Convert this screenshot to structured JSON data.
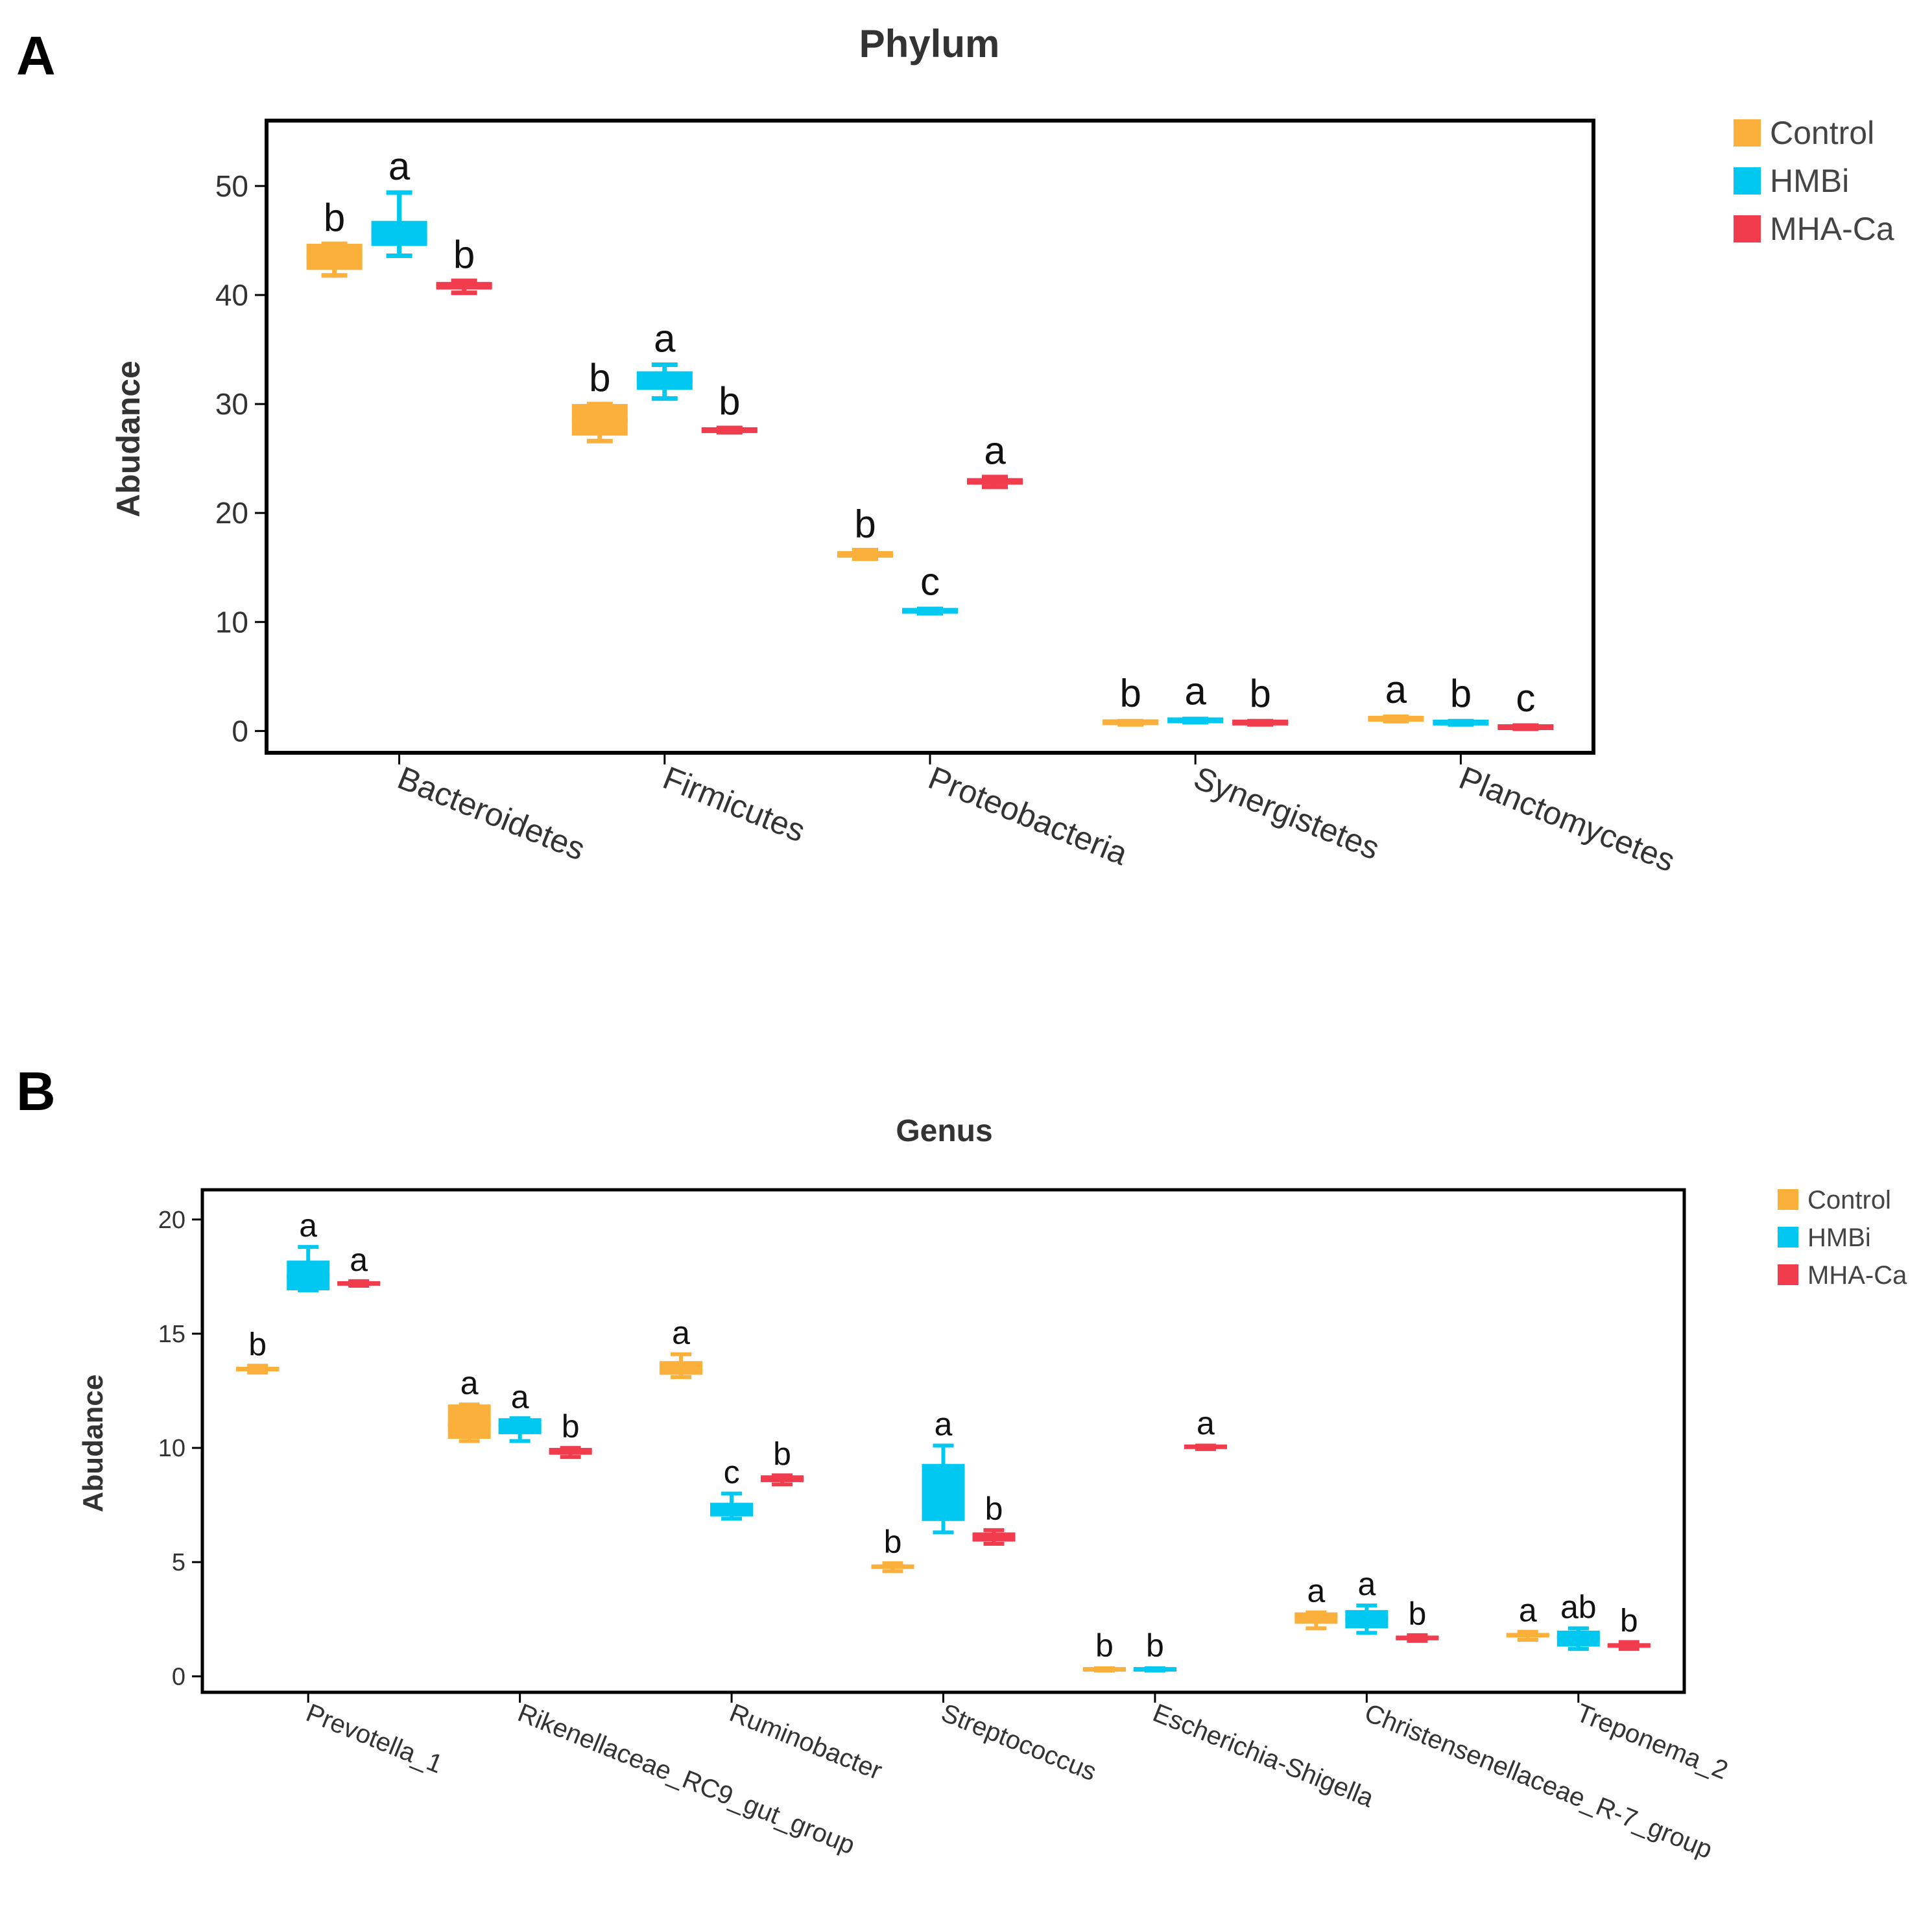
{
  "panels": [
    {
      "letter": "A",
      "chart_data": {
        "type": "box",
        "title": "Phylum",
        "ylabel": "Abudance",
        "xlabel": "",
        "ylim": [
          -2,
          56
        ],
        "yticks": [
          0,
          10,
          20,
          30,
          40,
          50
        ],
        "grid": false,
        "legend_position": "top-right, outside plot",
        "categories": [
          "Bacteroidetes",
          "Firmicutes",
          "Proteobacteria",
          "Synergistetes",
          "Planctomycetes"
        ],
        "series": [
          {
            "name": "Control",
            "color": "#FBB03B",
            "boxes": [
              {
                "min": 41.8,
                "q1": 42.3,
                "median": 43.5,
                "q3": 44.7,
                "max": 44.7,
                "label": "b"
              },
              {
                "min": 26.6,
                "q1": 27.1,
                "median": 28.5,
                "q3": 30.0,
                "max": 30.0,
                "label": "b"
              },
              {
                "min": 15.8,
                "q1": 15.9,
                "median": 16.2,
                "q3": 16.5,
                "max": 16.6,
                "label": "b"
              },
              {
                "min": 0.6,
                "q1": 0.7,
                "median": 0.8,
                "q3": 0.9,
                "max": 0.9,
                "label": "b"
              },
              {
                "min": 0.9,
                "q1": 0.95,
                "median": 1.1,
                "q3": 1.3,
                "max": 1.3,
                "label": "a"
              }
            ]
          },
          {
            "name": "HMBi",
            "color": "#00C8F0",
            "boxes": [
              {
                "min": 43.6,
                "q1": 44.5,
                "median": 45.5,
                "q3": 46.8,
                "max": 49.4,
                "label": "a"
              },
              {
                "min": 30.5,
                "q1": 31.3,
                "median": 32.2,
                "q3": 33.0,
                "max": 33.6,
                "label": "a"
              },
              {
                "min": 10.8,
                "q1": 10.85,
                "median": 11.0,
                "q3": 11.2,
                "max": 11.2,
                "label": "c"
              },
              {
                "min": 0.8,
                "q1": 0.85,
                "median": 1.0,
                "q3": 1.1,
                "max": 1.1,
                "label": "a"
              },
              {
                "min": 0.6,
                "q1": 0.65,
                "median": 0.8,
                "q3": 0.9,
                "max": 0.9,
                "label": "b"
              }
            ]
          },
          {
            "name": "MHA-Ca",
            "color": "#F03C4C",
            "boxes": [
              {
                "min": 40.2,
                "q1": 40.5,
                "median": 40.8,
                "q3": 41.2,
                "max": 41.3,
                "label": "b"
              },
              {
                "min": 27.4,
                "q1": 27.5,
                "median": 27.6,
                "q3": 27.7,
                "max": 27.8,
                "label": "b"
              },
              {
                "min": 22.4,
                "q1": 22.6,
                "median": 22.9,
                "q3": 23.2,
                "max": 23.3,
                "label": "a"
              },
              {
                "min": 0.6,
                "q1": 0.65,
                "median": 0.8,
                "q3": 0.9,
                "max": 0.9,
                "label": "b"
              },
              {
                "min": 0.2,
                "q1": 0.25,
                "median": 0.35,
                "q3": 0.45,
                "max": 0.5,
                "label": "c"
              }
            ]
          }
        ]
      }
    },
    {
      "letter": "B",
      "chart_data": {
        "type": "box",
        "title": "Genus",
        "ylabel": "Abudance",
        "xlabel": "",
        "ylim": [
          -0.7,
          21.3
        ],
        "yticks": [
          0,
          5,
          10,
          15,
          20
        ],
        "grid": false,
        "legend_position": "top-right, outside plot",
        "categories": [
          "Prevotella_1",
          "Rikenellaceae_RC9_gut_group",
          "Ruminobacter",
          "Streptococcus",
          "Escherichia-Shigella",
          "Christensenellaceae_R-7_group",
          "Treponema_2"
        ],
        "series": [
          {
            "name": "Control",
            "color": "#FBB03B",
            "boxes": [
              {
                "min": 13.3,
                "q1": 13.35,
                "median": 13.45,
                "q3": 13.55,
                "max": 13.6,
                "label": "b"
              },
              {
                "min": 10.3,
                "q1": 10.4,
                "median": 11.0,
                "q3": 11.9,
                "max": 11.9,
                "label": "a"
              },
              {
                "min": 13.1,
                "q1": 13.2,
                "median": 13.6,
                "q3": 13.8,
                "max": 14.1,
                "label": "a"
              },
              {
                "min": 4.6,
                "q1": 4.7,
                "median": 4.8,
                "q3": 4.9,
                "max": 4.95,
                "label": "b"
              },
              {
                "min": 0.25,
                "q1": 0.28,
                "median": 0.3,
                "q3": 0.33,
                "max": 0.35,
                "label": "b"
              },
              {
                "min": 2.1,
                "q1": 2.3,
                "median": 2.6,
                "q3": 2.8,
                "max": 2.8,
                "label": "a"
              },
              {
                "min": 1.6,
                "q1": 1.7,
                "median": 1.8,
                "q3": 1.9,
                "max": 1.95,
                "label": "a"
              }
            ]
          },
          {
            "name": "HMBi",
            "color": "#00C8F0",
            "boxes": [
              {
                "min": 16.9,
                "q1": 16.9,
                "median": 17.5,
                "q3": 18.2,
                "max": 18.8,
                "label": "a"
              },
              {
                "min": 10.3,
                "q1": 10.6,
                "median": 11.0,
                "q3": 11.3,
                "max": 11.3,
                "label": "a"
              },
              {
                "min": 6.9,
                "q1": 7.0,
                "median": 7.3,
                "q3": 7.6,
                "max": 8.0,
                "label": "c"
              },
              {
                "min": 6.3,
                "q1": 6.8,
                "median": 8.0,
                "q3": 9.3,
                "max": 10.1,
                "label": "a"
              },
              {
                "min": 0.25,
                "q1": 0.28,
                "median": 0.3,
                "q3": 0.33,
                "max": 0.35,
                "label": "b"
              },
              {
                "min": 1.9,
                "q1": 2.1,
                "median": 2.5,
                "q3": 2.9,
                "max": 3.1,
                "label": "a"
              },
              {
                "min": 1.2,
                "q1": 1.3,
                "median": 1.7,
                "q3": 2.0,
                "max": 2.1,
                "label": "ab"
              }
            ]
          },
          {
            "name": "MHA-Ca",
            "color": "#F03C4C",
            "boxes": [
              {
                "min": 17.1,
                "q1": 17.1,
                "median": 17.2,
                "q3": 17.3,
                "max": 17.3,
                "label": "a"
              },
              {
                "min": 9.6,
                "q1": 9.7,
                "median": 9.85,
                "q3": 10.0,
                "max": 10.0,
                "label": "b"
              },
              {
                "min": 8.4,
                "q1": 8.5,
                "median": 8.6,
                "q3": 8.8,
                "max": 8.8,
                "label": "b"
              },
              {
                "min": 5.8,
                "q1": 5.9,
                "median": 6.1,
                "q3": 6.3,
                "max": 6.4,
                "label": "b"
              },
              {
                "min": 9.95,
                "q1": 10.0,
                "median": 10.05,
                "q3": 10.1,
                "max": 10.1,
                "label": "a"
              },
              {
                "min": 1.55,
                "q1": 1.6,
                "median": 1.7,
                "q3": 1.75,
                "max": 1.8,
                "label": "b"
              },
              {
                "min": 1.2,
                "q1": 1.25,
                "median": 1.35,
                "q3": 1.45,
                "max": 1.5,
                "label": "b"
              }
            ]
          }
        ]
      }
    }
  ]
}
